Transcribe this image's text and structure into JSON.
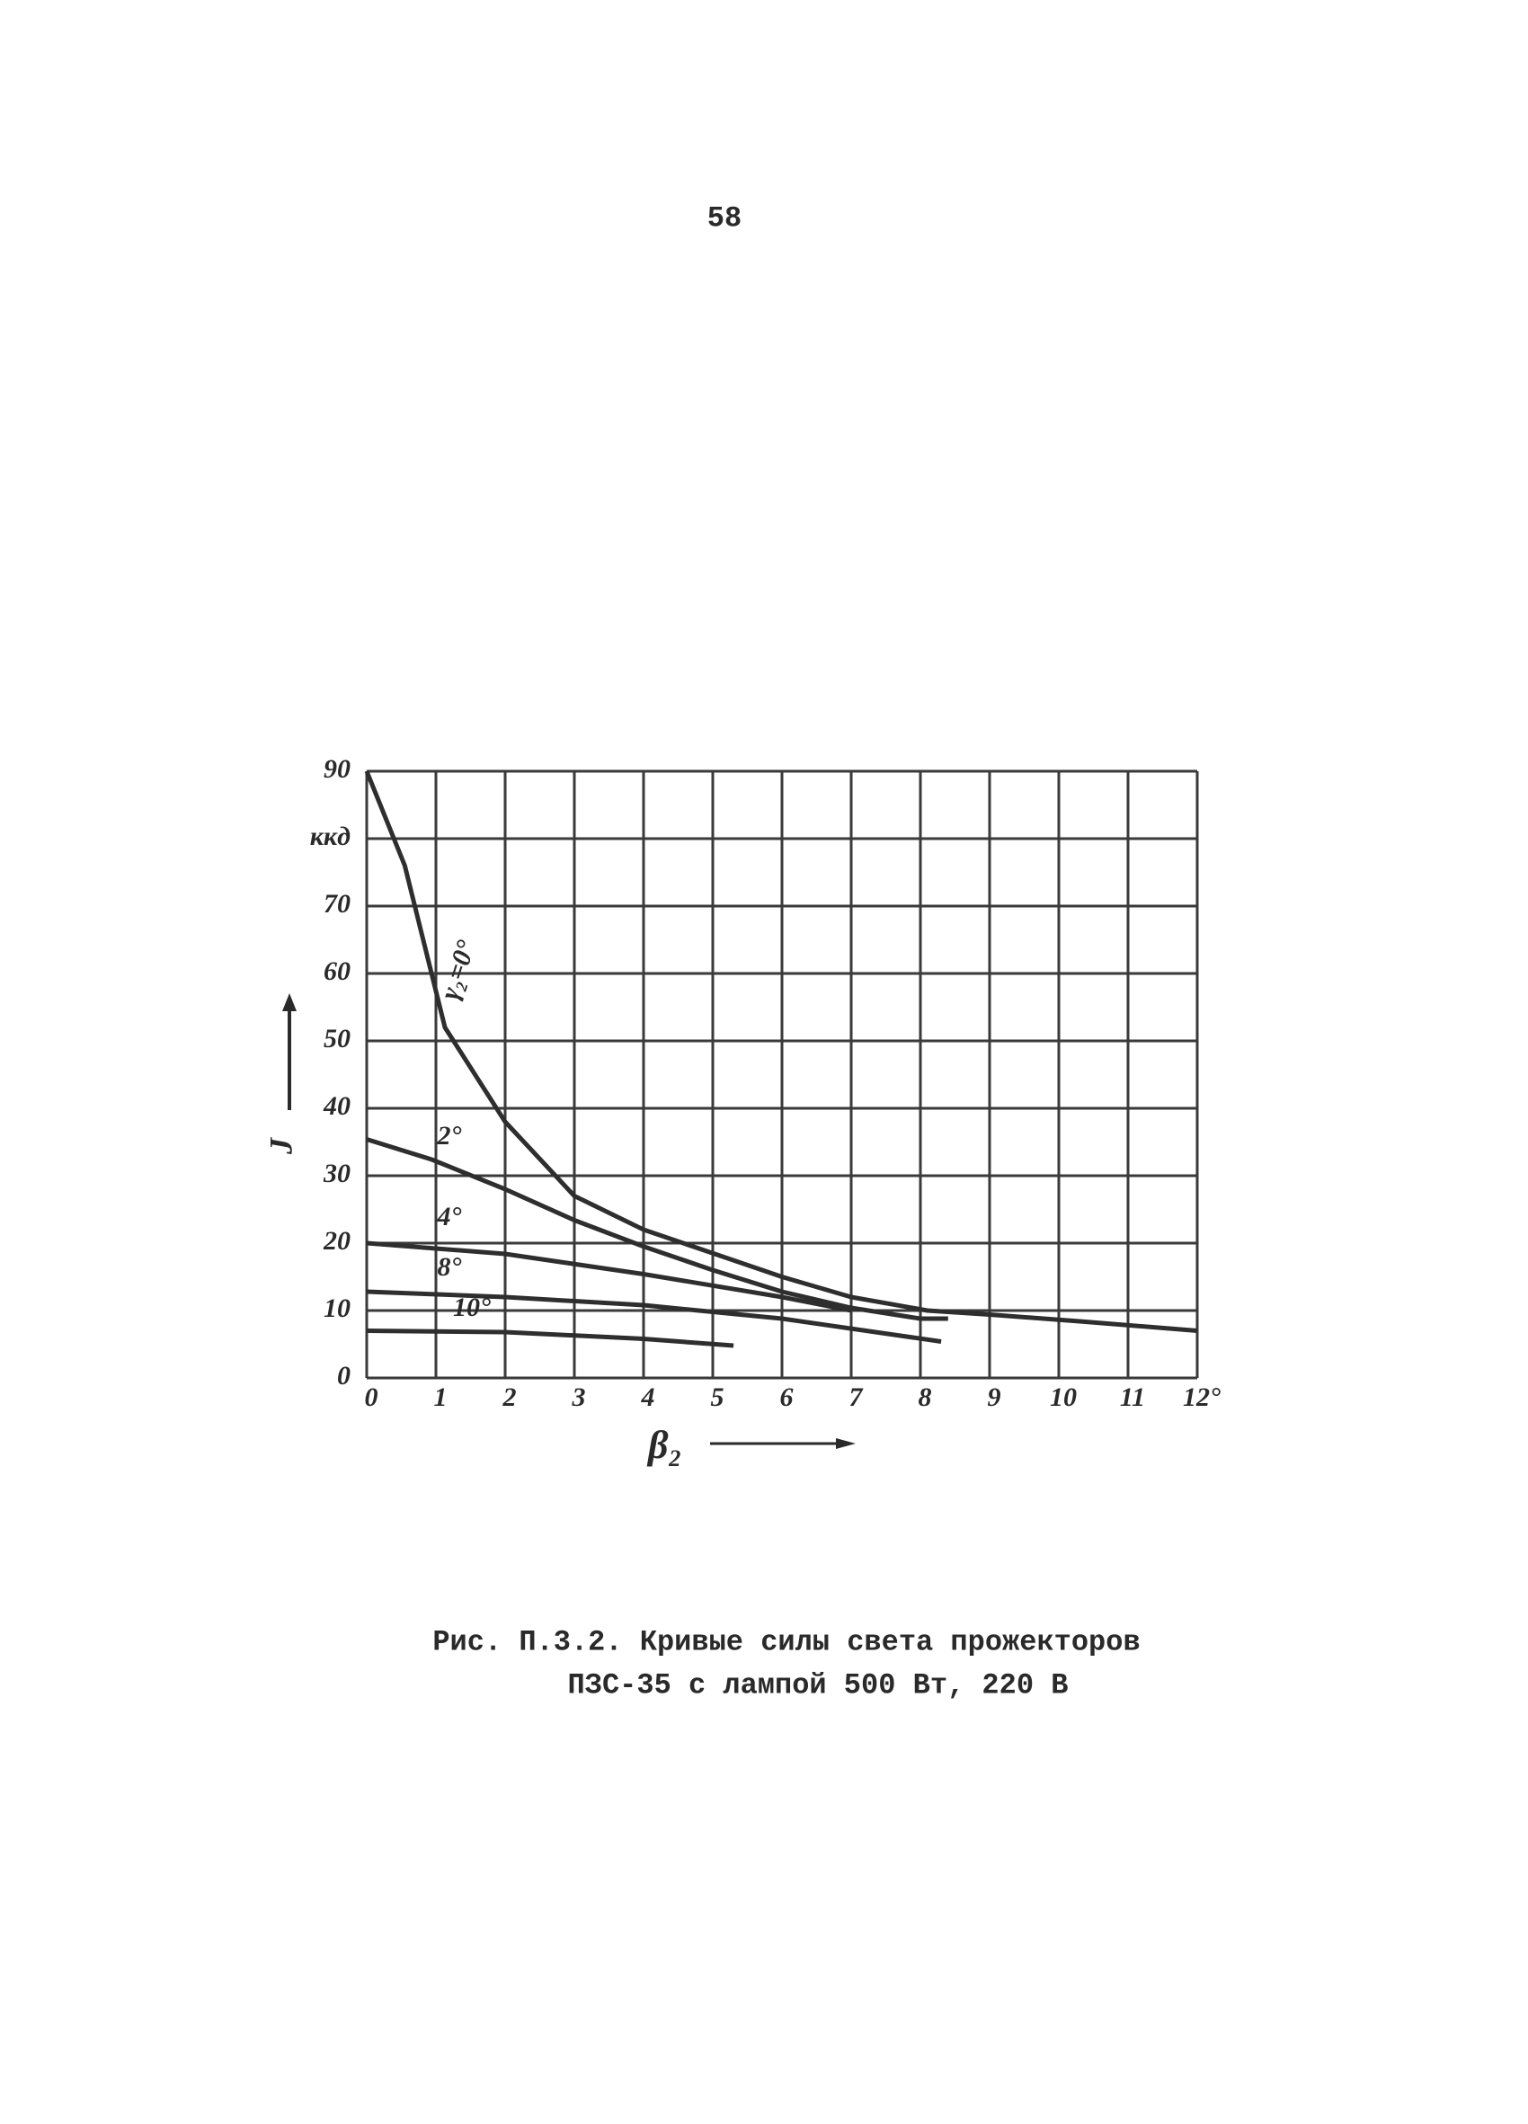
{
  "page_number": "58",
  "chart_data": {
    "type": "line",
    "x_label": "β₂",
    "y_label": "J",
    "xlim": [
      0,
      12
    ],
    "ylim": [
      0,
      90
    ],
    "xticks": [
      0,
      1,
      2,
      3,
      4,
      5,
      6,
      7,
      8,
      9,
      10,
      11,
      {
        "value": 12,
        "label": "12°"
      }
    ],
    "yticks": [
      0,
      10,
      20,
      30,
      40,
      50,
      60,
      70,
      {
        "value": 80,
        "label": "ккд"
      },
      90
    ],
    "grid": true,
    "series": [
      {
        "name": "γ₂=0°",
        "color": "#2e2e2e",
        "x": [
          0,
          0.55,
          1.13,
          2,
          3,
          4,
          5,
          6,
          7,
          8.1,
          9,
          10.3,
          12
        ],
        "values": [
          90,
          76,
          52,
          38,
          27,
          22,
          18.5,
          15,
          12,
          10,
          9.4,
          8.4,
          7
        ]
      },
      {
        "name": "2°",
        "color": "#2e2e2e",
        "x": [
          0,
          0.94,
          2,
          3,
          4,
          5,
          6,
          7,
          8,
          8.4
        ],
        "values": [
          35.4,
          32.4,
          28,
          23.4,
          19.5,
          16,
          12.8,
          10.4,
          8.8,
          8.8
        ]
      },
      {
        "name": "4°",
        "color": "#2e2e2e",
        "x": [
          0,
          2,
          4,
          6,
          7
        ],
        "values": [
          20,
          18.4,
          15.4,
          12,
          10
        ]
      },
      {
        "name": "8°",
        "color": "#2e2e2e",
        "x": [
          0,
          2,
          4,
          6,
          8.3
        ],
        "values": [
          12.8,
          12,
          10.8,
          8.8,
          5.4
        ]
      },
      {
        "name": "10°",
        "color": "#2e2e2e",
        "x": [
          0,
          2,
          4,
          5.3
        ],
        "values": [
          7,
          6.8,
          5.8,
          4.8
        ]
      }
    ]
  },
  "caption": [
    "Рис. П.3.2. Кривые силы света прожекторов",
    "ПЗС-35 с лампой 500 Вт, 220 В"
  ]
}
